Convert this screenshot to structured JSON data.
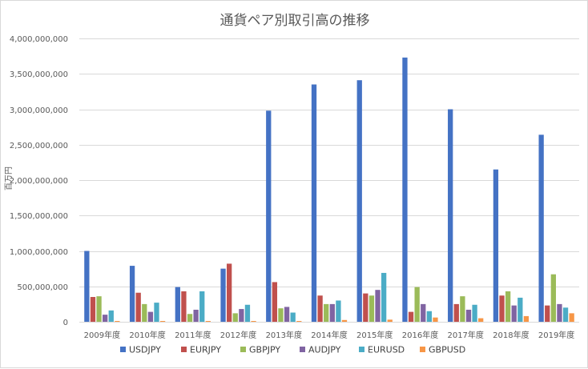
{
  "chart_data": {
    "type": "bar",
    "title": "通貨ペア別取引高の推移",
    "xlabel": "",
    "ylabel": "百万円",
    "ylim": [
      0,
      4000000000
    ],
    "yticks": [
      0,
      500000000,
      1000000000,
      1500000000,
      2000000000,
      2500000000,
      3000000000,
      3500000000,
      4000000000
    ],
    "ytick_labels": [
      "0",
      "500,000,000",
      "1,000,000,000",
      "1,500,000,000",
      "2,000,000,000",
      "2,500,000,000",
      "3,000,000,000",
      "3,500,000,000",
      "4,000,000,000"
    ],
    "grid": true,
    "legend_position": "bottom",
    "categories": [
      "2009年度",
      "2010年度",
      "2011年度",
      "2012年度",
      "2013年度",
      "2014年度",
      "2015年度",
      "2016年度",
      "2017年度",
      "2018年度",
      "2019年度"
    ],
    "series": [
      {
        "name": "USDJPY",
        "color": "#4472c4",
        "values": [
          1000000000,
          790000000,
          490000000,
          750000000,
          2980000000,
          3350000000,
          3410000000,
          3730000000,
          3000000000,
          2150000000,
          2640000000
        ]
      },
      {
        "name": "EURJPY",
        "color": "#c0504d",
        "values": [
          350000000,
          410000000,
          430000000,
          820000000,
          560000000,
          370000000,
          400000000,
          140000000,
          250000000,
          370000000,
          230000000
        ]
      },
      {
        "name": "GBPJPY",
        "color": "#9bbb59",
        "values": [
          360000000,
          250000000,
          110000000,
          120000000,
          190000000,
          250000000,
          370000000,
          490000000,
          360000000,
          430000000,
          670000000
        ]
      },
      {
        "name": "AUDJPY",
        "color": "#8064a2",
        "values": [
          100000000,
          140000000,
          170000000,
          180000000,
          210000000,
          250000000,
          450000000,
          250000000,
          170000000,
          230000000,
          250000000
        ]
      },
      {
        "name": "EURUSD",
        "color": "#4bacc6",
        "values": [
          160000000,
          270000000,
          430000000,
          240000000,
          130000000,
          300000000,
          690000000,
          150000000,
          240000000,
          340000000,
          200000000
        ]
      },
      {
        "name": "GBPUSD",
        "color": "#f79646",
        "values": [
          10000000,
          10000000,
          10000000,
          5000000,
          10000000,
          25000000,
          30000000,
          60000000,
          50000000,
          80000000,
          120000000
        ]
      }
    ]
  }
}
